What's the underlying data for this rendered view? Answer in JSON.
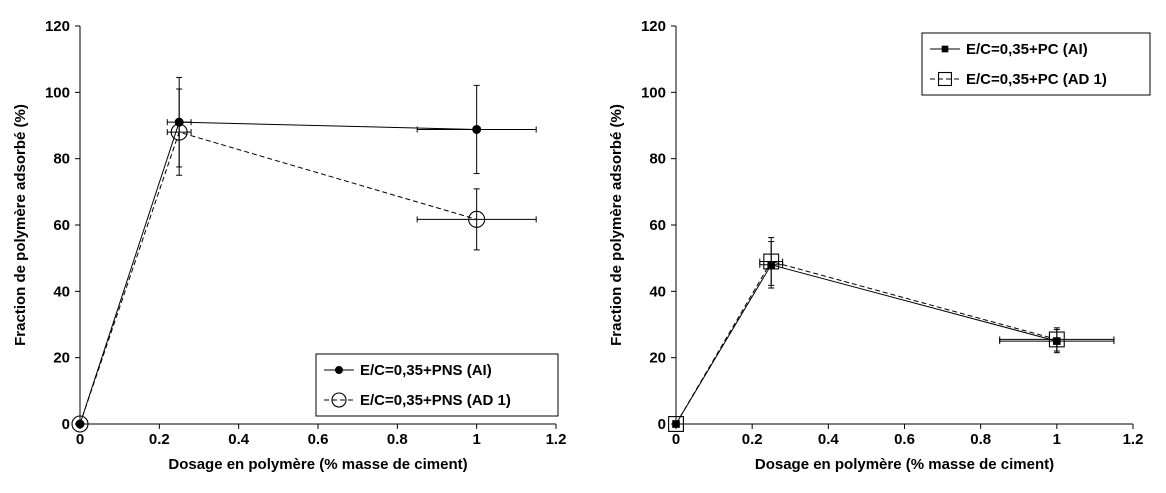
{
  "chart_data": [
    {
      "type": "line",
      "title": "",
      "xlabel": "Dosage en polymère (% masse de ciment)",
      "ylabel": "Fraction de polymère adsorbé (%)",
      "xlim": [
        0,
        1.2
      ],
      "ylim": [
        0,
        120
      ],
      "xticks": [
        "0",
        "0.2",
        "0.4",
        "0.6",
        "0.8",
        "1",
        "1.2"
      ],
      "yticks": [
        "0",
        "20",
        "40",
        "60",
        "80",
        "100",
        "120"
      ],
      "grid": false,
      "legend_position": "bottom-right",
      "series": [
        {
          "name": "E/C=0,35+PNS (AI)",
          "marker": "filled-circle",
          "line_style": "solid",
          "color": "#000000",
          "points": [
            {
              "x": 0,
              "y": 0,
              "yerr": 0,
              "xerr": 0
            },
            {
              "x": 0.25,
              "y": 91,
              "yerr": 13.5,
              "xerr": 0.03
            },
            {
              "x": 1,
              "y": 88.8,
              "yerr": 13.3,
              "xerr": 0.15
            }
          ]
        },
        {
          "name": "E/C=0,35+PNS (AD 1)",
          "marker": "open-circle",
          "line_style": "dashed",
          "color": "#000000",
          "points": [
            {
              "x": 0,
              "y": 0,
              "yerr": 0,
              "xerr": 0
            },
            {
              "x": 0.25,
              "y": 88,
              "yerr": 13,
              "xerr": 0.03
            },
            {
              "x": 1,
              "y": 61.7,
              "yerr": 9.2,
              "xerr": 0.15
            }
          ]
        }
      ]
    },
    {
      "type": "line",
      "title": "",
      "xlabel": "Dosage en polymère (% masse de ciment)",
      "ylabel": "Fraction de polymère adsorbé (%)",
      "xlim": [
        0,
        1.2
      ],
      "ylim": [
        0,
        120
      ],
      "xticks": [
        "0",
        "0.2",
        "0.4",
        "0.6",
        "0.8",
        "1",
        "1.2"
      ],
      "yticks": [
        "0",
        "20",
        "40",
        "60",
        "80",
        "100",
        "120"
      ],
      "grid": false,
      "legend_position": "top-right",
      "series": [
        {
          "name": "E/C=0,35+PC (AI)",
          "marker": "filled-square",
          "line_style": "solid",
          "color": "#000000",
          "points": [
            {
              "x": 0,
              "y": 0,
              "yerr": 0,
              "xerr": 0
            },
            {
              "x": 0.25,
              "y": 48,
              "yerr": 7,
              "xerr": 0.03
            },
            {
              "x": 1,
              "y": 25,
              "yerr": 3.5,
              "xerr": 0.15
            }
          ]
        },
        {
          "name": "E/C=0,35+PC (AD 1)",
          "marker": "open-square",
          "line_style": "dashed",
          "color": "#000000",
          "points": [
            {
              "x": 0,
              "y": 0,
              "yerr": 0,
              "xerr": 0
            },
            {
              "x": 0.25,
              "y": 49,
              "yerr": 7.2,
              "xerr": 0.03
            },
            {
              "x": 1,
              "y": 25.5,
              "yerr": 3.5,
              "xerr": 0.15
            }
          ]
        }
      ]
    }
  ]
}
